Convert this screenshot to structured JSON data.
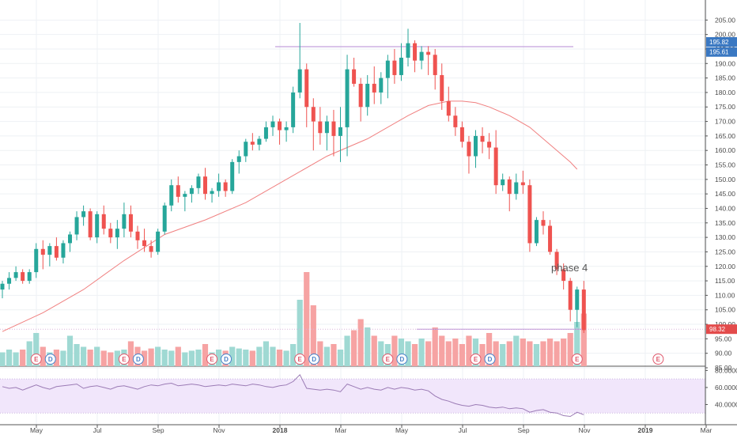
{
  "chart_data": {
    "type": "candlestick",
    "price_axis": {
      "ylim": [
        85,
        207
      ],
      "ticks": [
        "205.00",
        "200.00",
        "195.00",
        "190.00",
        "185.00",
        "180.00",
        "175.00",
        "170.00",
        "165.00",
        "160.00",
        "155.00",
        "150.00",
        "145.00",
        "140.00",
        "135.00",
        "130.00",
        "125.00",
        "120.00",
        "115.00",
        "110.00",
        "105.00",
        "100.00",
        "95.00",
        "90.00",
        "85.00"
      ]
    },
    "time_axis": {
      "labels": [
        {
          "text": "May",
          "m": 0,
          "bold": false
        },
        {
          "text": "Jul",
          "m": 2,
          "bold": false
        },
        {
          "text": "Sep",
          "m": 4,
          "bold": false
        },
        {
          "text": "Nov",
          "m": 6,
          "bold": false
        },
        {
          "text": "2018",
          "m": 8,
          "bold": true
        },
        {
          "text": "Mar",
          "m": 10,
          "bold": false
        },
        {
          "text": "May",
          "m": 12,
          "bold": false
        },
        {
          "text": "Jul",
          "m": 14,
          "bold": false
        },
        {
          "text": "Sep",
          "m": 16,
          "bold": false
        },
        {
          "text": "Nov",
          "m": 18,
          "bold": false
        },
        {
          "text": "2019",
          "m": 20,
          "bold": true
        },
        {
          "text": "Mar",
          "m": 22,
          "bold": false
        }
      ]
    },
    "candles": [
      [
        112,
        115,
        109,
        114
      ],
      [
        114,
        118,
        112,
        116
      ],
      [
        116,
        120,
        115,
        118
      ],
      [
        118,
        119,
        114,
        115
      ],
      [
        115,
        119,
        114,
        118
      ],
      [
        118,
        128,
        116,
        126
      ],
      [
        126,
        129,
        119,
        124
      ],
      [
        124,
        128,
        120,
        127
      ],
      [
        127,
        130,
        122,
        123
      ],
      [
        123,
        129,
        121,
        128
      ],
      [
        128,
        132,
        125,
        131
      ],
      [
        131,
        139,
        129,
        137
      ],
      [
        137,
        141,
        134,
        139
      ],
      [
        139,
        140,
        129,
        130
      ],
      [
        130,
        139,
        128,
        138
      ],
      [
        138,
        141,
        131,
        133
      ],
      [
        133,
        135,
        128,
        130
      ],
      [
        130,
        136,
        126,
        133
      ],
      [
        133,
        142,
        130,
        138
      ],
      [
        138,
        141,
        130,
        132
      ],
      [
        132,
        134,
        126,
        129
      ],
      [
        129,
        133,
        125,
        127
      ],
      [
        127,
        129,
        123,
        125
      ],
      [
        125,
        133,
        124,
        132
      ],
      [
        132,
        142,
        131,
        141
      ],
      [
        141,
        150,
        139,
        148
      ],
      [
        148,
        151,
        142,
        144
      ],
      [
        144,
        146,
        139,
        145
      ],
      [
        145,
        148,
        142,
        147
      ],
      [
        147,
        152,
        145,
        151
      ],
      [
        151,
        154,
        143,
        145
      ],
      [
        145,
        147,
        142,
        146
      ],
      [
        146,
        152,
        144,
        149
      ],
      [
        149,
        150,
        144,
        146
      ],
      [
        146,
        157,
        145,
        156
      ],
      [
        156,
        160,
        152,
        158
      ],
      [
        158,
        164,
        156,
        163
      ],
      [
        163,
        166,
        160,
        162
      ],
      [
        162,
        165,
        160,
        164
      ],
      [
        164,
        170,
        163,
        168
      ],
      [
        168,
        172,
        165,
        170
      ],
      [
        170,
        171,
        162,
        167
      ],
      [
        167,
        170,
        163,
        168
      ],
      [
        168,
        182,
        166,
        180
      ],
      [
        180,
        204,
        178,
        188
      ],
      [
        188,
        190,
        168,
        175
      ],
      [
        175,
        178,
        160,
        170
      ],
      [
        170,
        175,
        162,
        166
      ],
      [
        166,
        172,
        160,
        170
      ],
      [
        170,
        174,
        158,
        165
      ],
      [
        165,
        175,
        156,
        168
      ],
      [
        168,
        193,
        158,
        188
      ],
      [
        188,
        192,
        182,
        183
      ],
      [
        183,
        185,
        170,
        175
      ],
      [
        175,
        186,
        172,
        183
      ],
      [
        183,
        189,
        176,
        180
      ],
      [
        180,
        187,
        176,
        185
      ],
      [
        185,
        193,
        178,
        191
      ],
      [
        191,
        195,
        183,
        186
      ],
      [
        186,
        197,
        184,
        192
      ],
      [
        192,
        202,
        189,
        197
      ],
      [
        197,
        198,
        187,
        191
      ],
      [
        191,
        196,
        188,
        194
      ],
      [
        194,
        196,
        186,
        193
      ],
      [
        193,
        195,
        181,
        186
      ],
      [
        186,
        190,
        174,
        177
      ],
      [
        177,
        182,
        170,
        172
      ],
      [
        172,
        175,
        165,
        168
      ],
      [
        168,
        170,
        161,
        163
      ],
      [
        163,
        165,
        152,
        158
      ],
      [
        158,
        167,
        154,
        165
      ],
      [
        165,
        168,
        159,
        163
      ],
      [
        163,
        166,
        157,
        161
      ],
      [
        161,
        167,
        145,
        148
      ],
      [
        148,
        152,
        146,
        150
      ],
      [
        150,
        151,
        139,
        145
      ],
      [
        145,
        152,
        143,
        149
      ],
      [
        149,
        153,
        145,
        148
      ],
      [
        148,
        150,
        125,
        128
      ],
      [
        128,
        137,
        127,
        136
      ],
      [
        136,
        139,
        131,
        134
      ],
      [
        134,
        136,
        124,
        125
      ],
      [
        125,
        126,
        117,
        119
      ],
      [
        119,
        121,
        112,
        115
      ],
      [
        115,
        116,
        101,
        105
      ],
      [
        105,
        113,
        99,
        112
      ],
      [
        112,
        115,
        97,
        98
      ]
    ],
    "ma_series": [
      [
        0,
        97.5
      ],
      [
        6,
        104
      ],
      [
        12,
        112
      ],
      [
        18,
        122
      ],
      [
        24,
        131
      ],
      [
        30,
        136
      ],
      [
        36,
        142
      ],
      [
        42,
        150
      ],
      [
        48,
        158
      ],
      [
        54,
        164
      ],
      [
        60,
        172
      ],
      [
        63,
        175.5
      ],
      [
        66,
        177
      ],
      [
        68,
        177
      ],
      [
        70,
        176.5
      ],
      [
        72,
        175
      ],
      [
        75,
        172
      ],
      [
        78,
        168
      ],
      [
        81,
        162
      ],
      [
        84,
        156
      ],
      [
        85,
        153.5
      ]
    ],
    "volume_rel": [
      0.25,
      0.3,
      0.25,
      0.3,
      0.45,
      0.6,
      0.35,
      0.25,
      0.3,
      0.28,
      0.55,
      0.4,
      0.35,
      0.3,
      0.35,
      0.28,
      0.25,
      0.28,
      0.3,
      0.45,
      0.35,
      0.28,
      0.32,
      0.35,
      0.3,
      0.28,
      0.35,
      0.25,
      0.28,
      0.3,
      0.4,
      0.25,
      0.3,
      0.28,
      0.35,
      0.32,
      0.3,
      0.28,
      0.35,
      0.45,
      0.35,
      0.3,
      0.28,
      0.4,
      1.2,
      1.7,
      1.1,
      0.45,
      0.35,
      0.4,
      0.3,
      0.55,
      0.65,
      0.85,
      0.7,
      0.55,
      0.45,
      0.4,
      0.55,
      0.5,
      0.45,
      0.4,
      0.5,
      0.45,
      0.7,
      0.55,
      0.45,
      0.5,
      0.4,
      0.55,
      0.5,
      0.4,
      0.6,
      0.45,
      0.4,
      0.45,
      0.55,
      0.5,
      0.45,
      0.4,
      0.45,
      0.5,
      0.45,
      0.5,
      0.6,
      0.8,
      0.95
    ],
    "rsi_axis": {
      "ticks": [
        "80.0000",
        "60.0000",
        "40.0000"
      ],
      "ylim": [
        20,
        85
      ],
      "band": [
        30,
        70
      ]
    },
    "rsi_values": [
      61,
      59,
      60,
      57,
      60,
      63,
      60,
      58,
      61,
      62,
      63,
      64,
      59,
      61,
      62,
      60,
      58,
      61,
      62,
      60,
      58,
      61,
      63,
      62,
      64,
      65,
      62,
      63,
      64,
      63,
      61,
      62,
      63,
      62,
      64,
      63,
      62,
      64,
      63,
      61,
      60,
      62,
      63,
      67,
      75,
      59,
      58,
      57,
      58,
      57,
      55,
      64,
      61,
      58,
      60,
      58,
      57,
      60,
      58,
      60,
      59,
      57,
      58,
      56,
      50,
      46,
      44,
      41,
      39,
      38,
      40,
      39,
      37,
      36,
      37,
      35,
      36,
      35,
      31,
      33,
      34,
      31,
      30,
      27,
      26,
      31,
      28
    ],
    "price_tags": [
      "195.82",
      "195.61",
      "98.32"
    ],
    "levels": {
      "resistance": 195.82,
      "support": 98.32
    },
    "earnings_markers": [
      {
        "c": 5,
        "labels": [
          "E",
          "D"
        ]
      },
      {
        "c": 18,
        "labels": [
          "E",
          "D"
        ]
      },
      {
        "c": 31,
        "labels": [
          "E",
          "D"
        ]
      },
      {
        "c": 44,
        "labels": [
          "E",
          "D"
        ]
      },
      {
        "c": 57,
        "labels": [
          "E",
          "D"
        ]
      },
      {
        "c": 70,
        "labels": [
          "E",
          "D"
        ]
      },
      {
        "c": 85,
        "labels": [
          "E"
        ]
      },
      {
        "c": 97,
        "labels": [
          "E"
        ]
      }
    ],
    "annotation": "phase 4",
    "colors": {
      "up": "#26a69a",
      "down": "#ef5350",
      "vol_up": "#9fd9d3",
      "vol_down": "#f6a3a3",
      "ma": "#f08080",
      "level": "#b58bd6",
      "rsi_line": "#9b7bb5",
      "rsi_band": "#f1e6fb",
      "tag_blue": "#3a78c2",
      "tag_red": "#e34b4b"
    }
  }
}
